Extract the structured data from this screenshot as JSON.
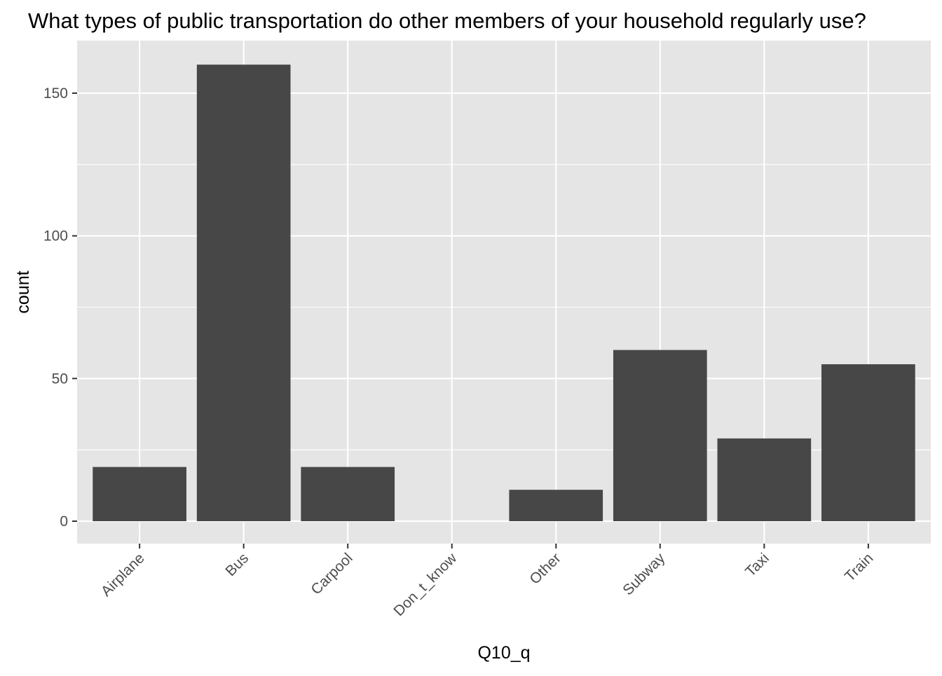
{
  "chart_data": {
    "type": "bar",
    "title": "What types of public transportation do other members of your household regularly use?",
    "xlabel": "Q10_q",
    "ylabel": "count",
    "categories": [
      "Airplane",
      "Bus",
      "Carpool",
      "Don_t_know",
      "Other",
      "Subway",
      "Taxi",
      "Train"
    ],
    "values": [
      19,
      160,
      19,
      0,
      11,
      60,
      29,
      55
    ],
    "ylim": [
      -7.5,
      168
    ],
    "yticks": [
      0,
      50,
      100,
      150
    ],
    "ytick_labels": [
      "0",
      "50",
      "100",
      "150"
    ],
    "grid": true,
    "legend": "none",
    "colors": {
      "bar": "#474747",
      "panel_background": "#e5e5e5",
      "grid_line": "#ffffff",
      "tick_text": "#4d4d4d",
      "tick_mark": "#333333",
      "title_text": "#000000"
    }
  }
}
